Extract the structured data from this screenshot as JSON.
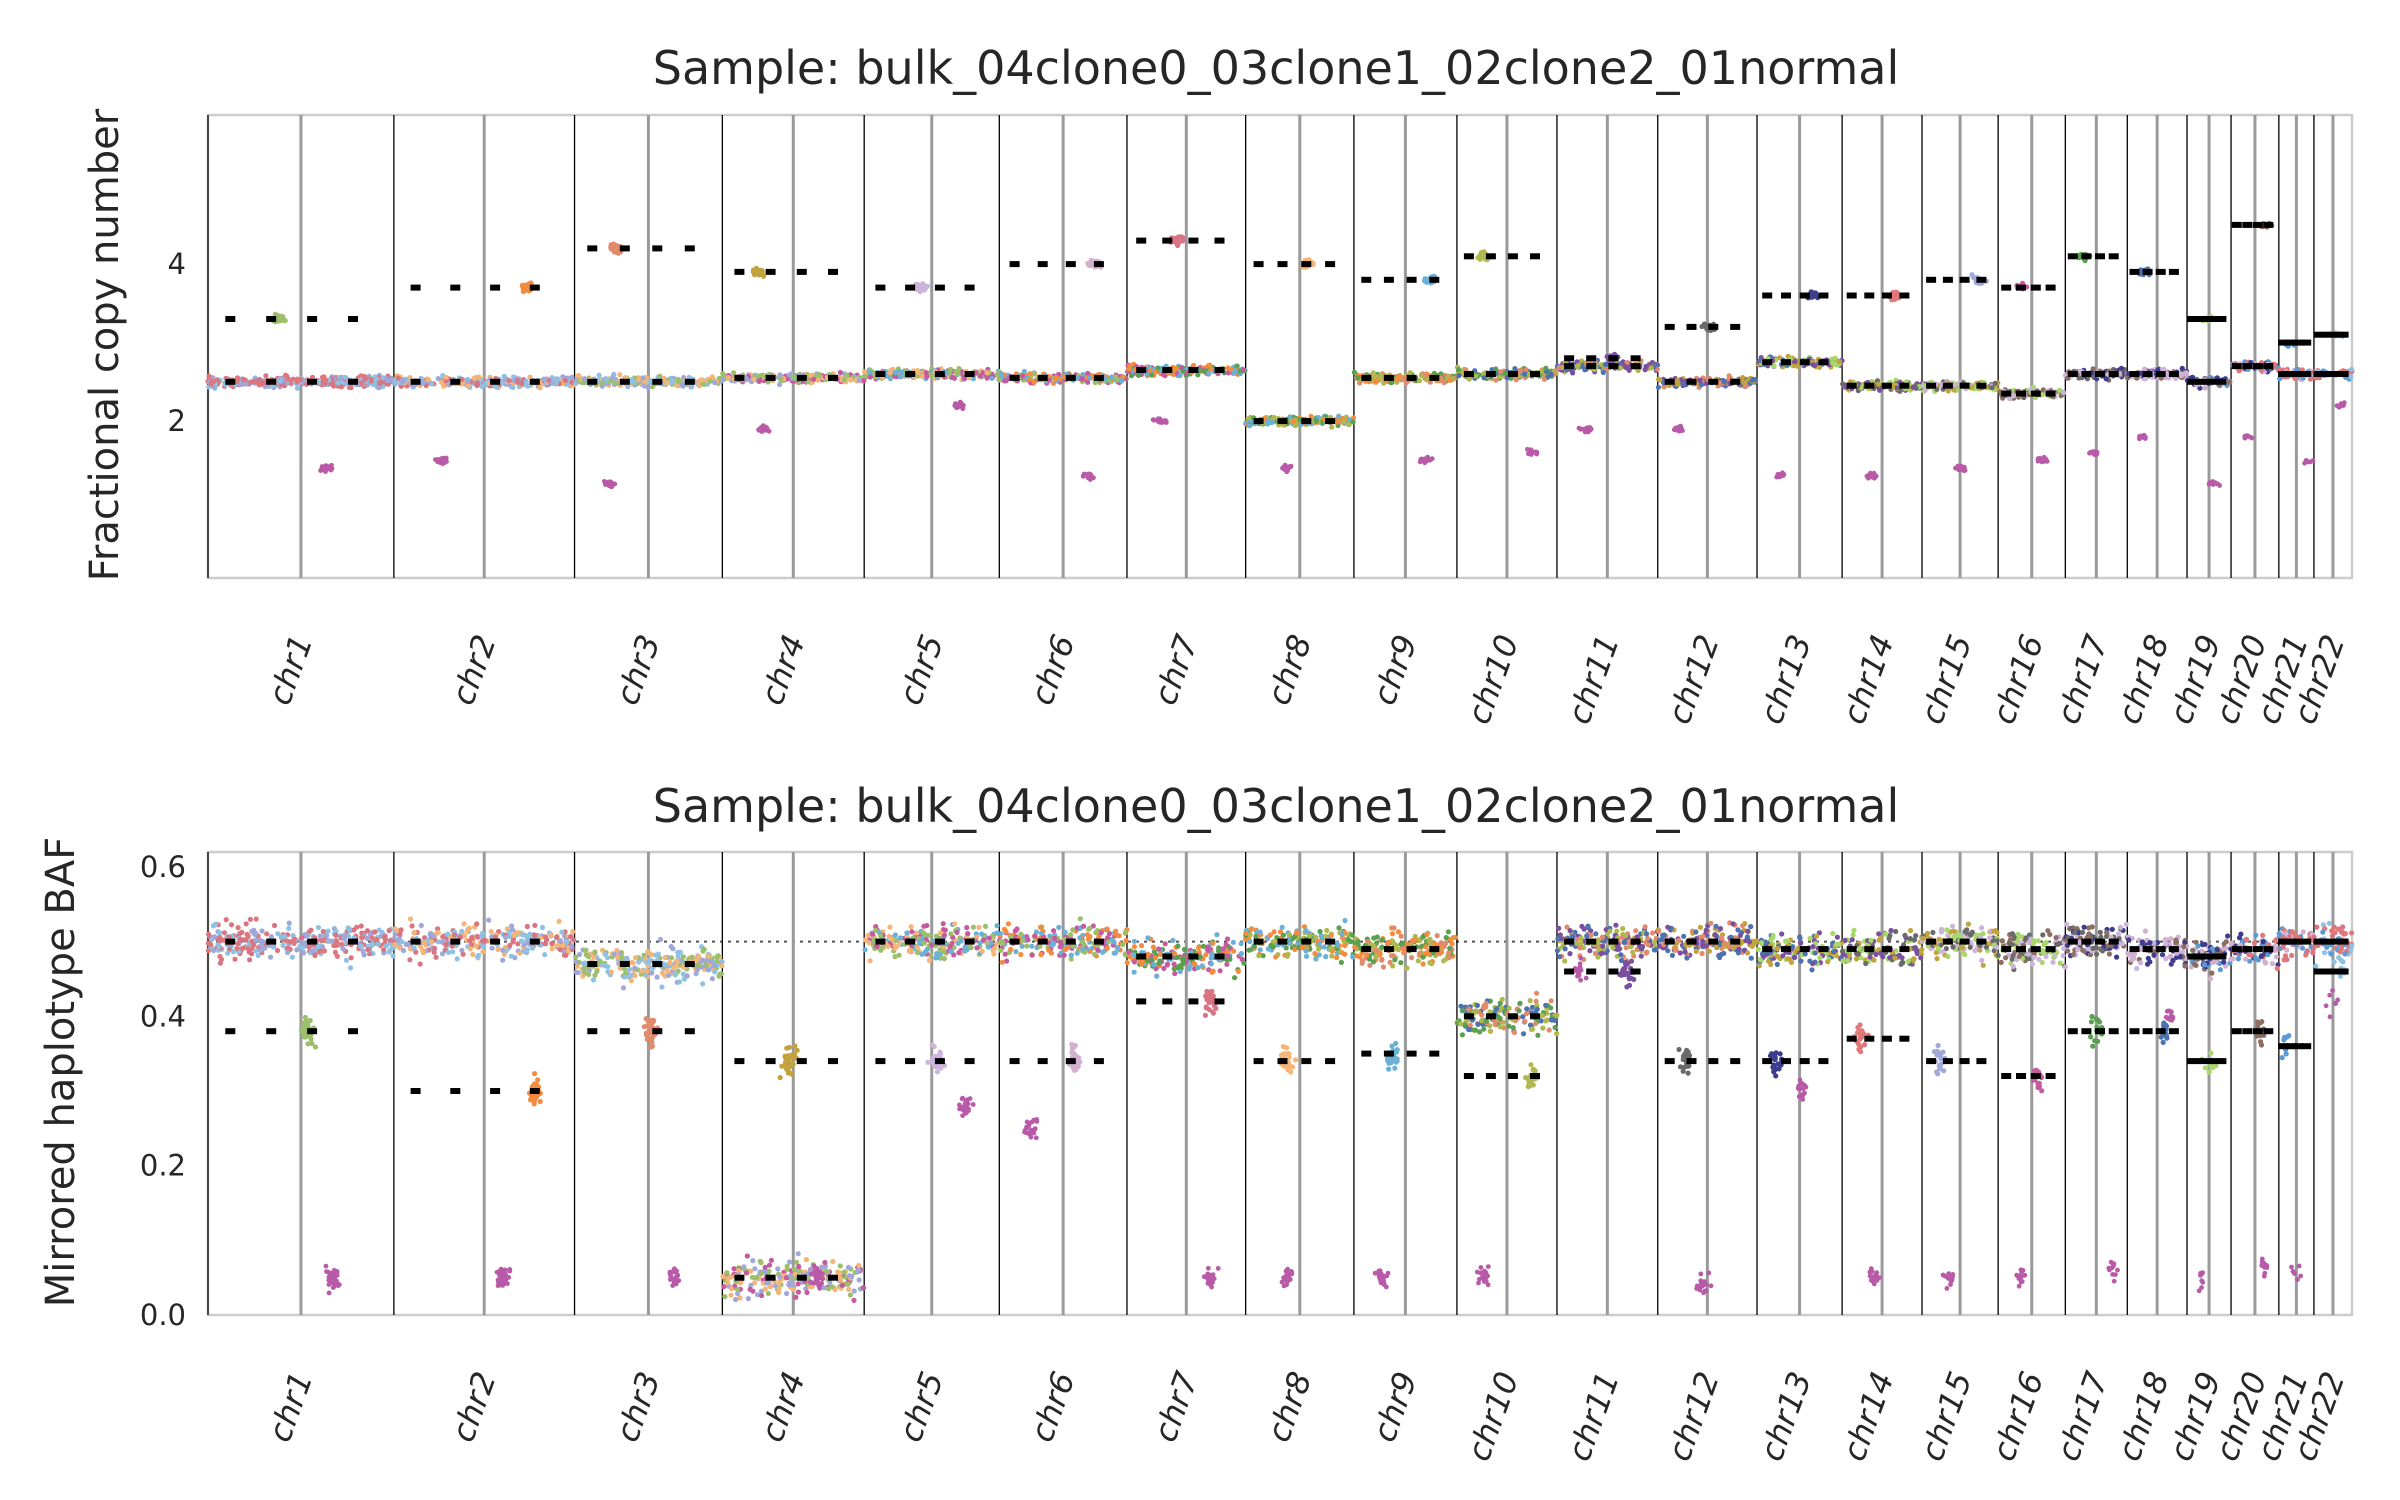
{
  "chart_data": [
    {
      "type": "scatter",
      "title": "Sample: bulk_04clone0_03clone1_02clone2_01normal",
      "ylabel": "Fractional copy number",
      "xlabel": "",
      "ylim": [
        0.0,
        5.9
      ],
      "yticks": [
        2,
        4
      ],
      "grid": false,
      "chromosomes": [
        "chr1",
        "chr2",
        "chr3",
        "chr4",
        "chr5",
        "chr6",
        "chr7",
        "chr8",
        "chr9",
        "chr10",
        "chr11",
        "chr12",
        "chr13",
        "chr14",
        "chr15",
        "chr16",
        "chr17",
        "chr18",
        "chr19",
        "chr20",
        "chr21",
        "chr22"
      ],
      "chrom_lengths_mb": [
        249,
        242,
        198,
        190,
        181,
        171,
        159,
        145,
        138,
        134,
        135,
        133,
        114,
        107,
        102,
        90,
        83,
        80,
        59,
        64,
        47,
        51
      ],
      "baseline": 2.55,
      "series": [
        {
          "values": [
            2.5,
            2.5,
            2.5,
            2.55,
            2.6,
            2.55,
            2.65,
            2.0,
            2.55,
            2.6,
            2.7,
            2.5,
            2.75,
            2.45,
            2.45,
            2.35,
            2.6,
            2.6,
            2.5,
            2.7,
            2.6,
            2.6
          ]
        },
        {
          "values": [
            3.3,
            3.7,
            4.2,
            3.9,
            3.7,
            4.0,
            4.3,
            4.0,
            3.8,
            4.1,
            2.8,
            3.2,
            3.6,
            3.6,
            3.8,
            3.7,
            4.1,
            3.9,
            3.3,
            4.5,
            3.0,
            3.1
          ]
        },
        {
          "values": [
            1.4,
            1.5,
            1.2,
            1.9,
            2.2,
            1.3,
            2.0,
            1.4,
            1.5,
            1.6,
            1.9,
            1.9,
            1.3,
            1.3,
            1.4,
            1.5,
            1.6,
            1.8,
            1.2,
            1.8,
            1.5,
            2.2
          ]
        }
      ]
    },
    {
      "type": "scatter",
      "title": "Sample: bulk_04clone0_03clone1_02clone2_01normal",
      "ylabel": "Mirrored haplotype BAF",
      "xlabel": "",
      "ylim": [
        0.0,
        0.62
      ],
      "yticks": [
        "0.0",
        "0.2",
        "0.4",
        "0.6"
      ],
      "reference_line": 0.5,
      "grid": false,
      "chromosomes": [
        "chr1",
        "chr2",
        "chr3",
        "chr4",
        "chr5",
        "chr6",
        "chr7",
        "chr8",
        "chr9",
        "chr10",
        "chr11",
        "chr12",
        "chr13",
        "chr14",
        "chr15",
        "chr16",
        "chr17",
        "chr18",
        "chr19",
        "chr20",
        "chr21",
        "chr22"
      ],
      "series": [
        {
          "values": [
            0.5,
            0.5,
            0.47,
            0.05,
            0.5,
            0.5,
            0.48,
            0.5,
            0.49,
            0.4,
            0.5,
            0.5,
            0.49,
            0.49,
            0.5,
            0.49,
            0.5,
            0.49,
            0.48,
            0.49,
            0.5,
            0.5
          ]
        },
        {
          "values": [
            0.38,
            0.3,
            0.38,
            0.34,
            0.34,
            0.34,
            0.42,
            0.34,
            0.35,
            0.32,
            0.46,
            0.34,
            0.34,
            0.37,
            0.34,
            0.32,
            0.38,
            0.38,
            0.34,
            0.38,
            0.36,
            0.46
          ]
        },
        {
          "values": [
            0.05,
            0.05,
            0.05,
            0.05,
            0.28,
            0.25,
            0.05,
            0.05,
            0.05,
            0.05,
            0.46,
            0.04,
            0.3,
            0.05,
            0.05,
            0.05,
            0.06,
            0.4,
            0.05,
            0.06,
            0.06,
            0.42
          ]
        }
      ]
    }
  ]
}
